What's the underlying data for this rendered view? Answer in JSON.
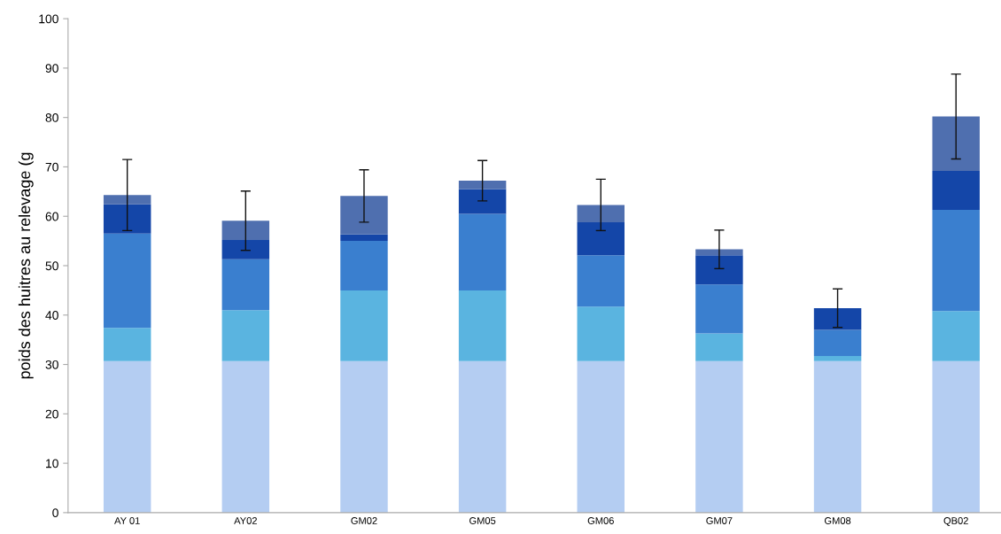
{
  "chart_data": {
    "type": "bar",
    "stacked": true,
    "ylabel": "poids des huitres au relevage (g",
    "categories": [
      "AY 01",
      "AY02",
      "GM02",
      "GM05",
      "GM06",
      "GM07",
      "GM08",
      "QB02"
    ],
    "series": [
      {
        "color": "#b4cdf2",
        "values": [
          30.7,
          30.7,
          30.7,
          30.7,
          30.7,
          30.7,
          30.7,
          30.7
        ]
      },
      {
        "color": "#5ab4e0",
        "values": [
          6.7,
          10.3,
          14.3,
          14.3,
          11.0,
          5.6,
          1.0,
          10.1
        ]
      },
      {
        "color": "#3a7fcf",
        "values": [
          19.1,
          10.3,
          10.0,
          15.5,
          10.4,
          9.9,
          5.3,
          20.5
        ]
      },
      {
        "color": "#1446a8",
        "values": [
          5.9,
          3.9,
          1.3,
          5.0,
          6.7,
          5.9,
          4.4,
          7.9
        ]
      },
      {
        "color": "#4f6faf",
        "values": [
          1.9,
          3.9,
          7.8,
          1.7,
          3.5,
          1.2,
          0,
          11.0
        ],
        "errors": [
          7.2,
          6.0,
          5.3,
          4.1,
          5.2,
          3.9,
          3.9,
          8.6
        ]
      }
    ],
    "ylim": [
      0,
      100
    ],
    "yticks": [
      0,
      10,
      20,
      30,
      40,
      50,
      60,
      70,
      80,
      90,
      100
    ],
    "grid": false,
    "legend": false
  }
}
